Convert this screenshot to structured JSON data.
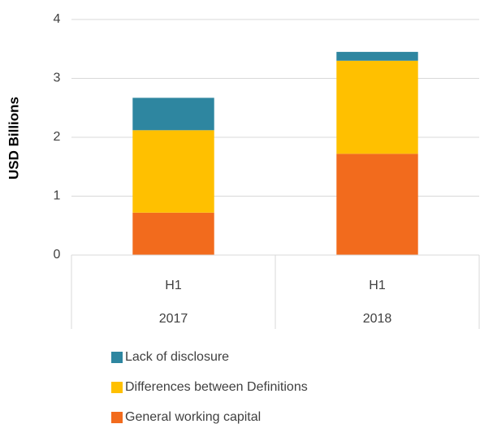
{
  "chart_data": {
    "type": "stacked_bar",
    "y_label": "USD Billions",
    "categories": [
      "H1",
      "H1"
    ],
    "category_groups": [
      "2017",
      "2018"
    ],
    "series": [
      {
        "name": "General working capital",
        "color": "#f26b1d",
        "values": [
          0.72,
          1.72
        ]
      },
      {
        "name": "Differences between Definitions",
        "color": "#ffc000",
        "values": [
          1.4,
          1.58
        ]
      },
      {
        "name": "Lack of disclosure",
        "color": "#2e86a0",
        "values": [
          0.55,
          0.15
        ]
      }
    ],
    "ylim": [
      0,
      4
    ],
    "yticks": [
      0,
      1,
      2,
      3,
      4
    ],
    "grid": true,
    "legend": "bottom"
  }
}
